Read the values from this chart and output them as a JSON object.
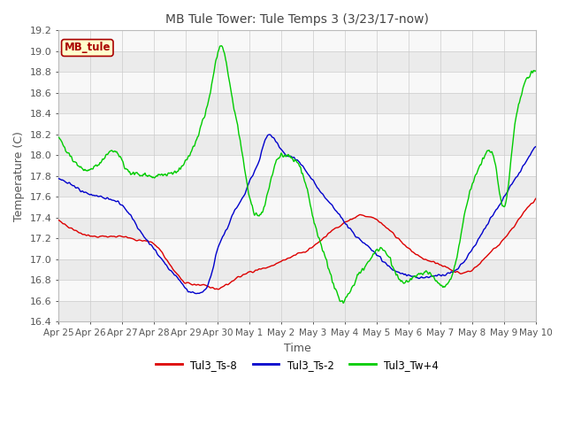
{
  "title": "MB Tule Tower: Tule Temps 3 (3/23/17-now)",
  "xlabel": "Time",
  "ylabel": "Temperature (C)",
  "ylim": [
    16.4,
    19.2
  ],
  "yticks": [
    16.4,
    16.6,
    16.8,
    17.0,
    17.2,
    17.4,
    17.6,
    17.8,
    18.0,
    18.2,
    18.4,
    18.6,
    18.8,
    19.0,
    19.2
  ],
  "xtick_labels": [
    "Apr 25",
    "Apr 26",
    "Apr 27",
    "Apr 28",
    "Apr 29",
    "Apr 30",
    "May 1",
    "May 2",
    "May 3",
    "May 4",
    "May 5",
    "May 6",
    "May 7",
    "May 8",
    "May 9",
    "May 10"
  ],
  "legend_box_label": "MB_tule",
  "legend_box_color": "#ffffcc",
  "legend_box_edge": "#aa0000",
  "legend_box_text": "#aa0000",
  "series": [
    {
      "label": "Tul3_Ts-8",
      "color": "#dd0000"
    },
    {
      "label": "Tul3_Ts-2",
      "color": "#0000cc"
    },
    {
      "label": "Tul3_Tw+4",
      "color": "#00cc00"
    }
  ],
  "bg_color": "#ffffff",
  "band_color1": "#ebebeb",
  "band_color2": "#f8f8f8",
  "red_kp": [
    0,
    0.2,
    0.5,
    0.8,
    1.0,
    1.3,
    1.6,
    2.0,
    2.5,
    3.0,
    3.5,
    4.0,
    4.5,
    5.0,
    5.5,
    6.0,
    6.5,
    7.0,
    7.5,
    8.0,
    8.5,
    9.0,
    9.5,
    10.0,
    10.5,
    11.0,
    11.5,
    12.0,
    12.5,
    13.0,
    13.5,
    14.0,
    14.5,
    15.0
  ],
  "red_vp": [
    17.38,
    17.33,
    17.28,
    17.24,
    17.22,
    17.22,
    17.22,
    17.22,
    17.18,
    17.15,
    16.95,
    16.78,
    16.75,
    16.72,
    16.8,
    16.88,
    16.92,
    16.98,
    17.05,
    17.12,
    17.25,
    17.35,
    17.42,
    17.38,
    17.25,
    17.1,
    17.0,
    16.95,
    16.88,
    16.9,
    17.05,
    17.2,
    17.4,
    17.58
  ],
  "blue_kp": [
    0,
    0.2,
    0.5,
    0.8,
    1.0,
    1.3,
    1.6,
    2.0,
    2.5,
    3.0,
    3.3,
    3.5,
    3.8,
    4.0,
    4.2,
    4.5,
    4.8,
    5.0,
    5.3,
    5.5,
    5.8,
    6.0,
    6.3,
    6.5,
    7.0,
    7.5,
    8.0,
    8.5,
    9.0,
    9.5,
    10.0,
    10.5,
    11.0,
    11.5,
    12.0,
    12.5,
    13.0,
    13.5,
    14.0,
    14.5,
    15.0
  ],
  "blue_vp": [
    17.78,
    17.75,
    17.7,
    17.65,
    17.62,
    17.6,
    17.58,
    17.52,
    17.3,
    17.1,
    16.98,
    16.9,
    16.8,
    16.72,
    16.68,
    16.68,
    16.85,
    17.1,
    17.3,
    17.45,
    17.6,
    17.75,
    17.95,
    18.15,
    18.05,
    17.95,
    17.75,
    17.55,
    17.35,
    17.18,
    17.05,
    16.9,
    16.85,
    16.82,
    16.85,
    16.9,
    17.1,
    17.35,
    17.6,
    17.85,
    18.1
  ],
  "green_kp": [
    0,
    0.15,
    0.3,
    0.5,
    0.7,
    0.9,
    1.1,
    1.3,
    1.5,
    1.7,
    1.9,
    2.1,
    2.4,
    2.7,
    3.0,
    3.3,
    3.6,
    3.9,
    4.2,
    4.5,
    4.8,
    5.1,
    5.4,
    5.7,
    6.0,
    6.3,
    6.5,
    6.8,
    7.1,
    7.4,
    7.7,
    8.0,
    8.3,
    8.6,
    8.9,
    9.2,
    9.5,
    9.8,
    10.1,
    10.4,
    10.7,
    11.0,
    11.3,
    11.6,
    11.9,
    12.2,
    12.5,
    12.8,
    13.1,
    13.4,
    13.7,
    14.0,
    14.3,
    14.6,
    14.9,
    15.0
  ],
  "green_vp": [
    18.18,
    18.1,
    18.02,
    17.95,
    17.88,
    17.85,
    17.88,
    17.92,
    18.0,
    18.05,
    18.0,
    17.88,
    17.82,
    17.82,
    17.8,
    17.82,
    17.82,
    17.9,
    18.05,
    18.3,
    18.65,
    19.05,
    18.65,
    18.15,
    17.6,
    17.42,
    17.55,
    17.9,
    18.0,
    17.95,
    17.8,
    17.4,
    17.1,
    16.8,
    16.6,
    16.72,
    16.88,
    17.0,
    17.1,
    17.0,
    16.8,
    16.8,
    16.85,
    16.88,
    16.78,
    16.75,
    17.0,
    17.5,
    17.8,
    18.0,
    17.95,
    17.5,
    18.2,
    18.65,
    18.8,
    18.8
  ]
}
